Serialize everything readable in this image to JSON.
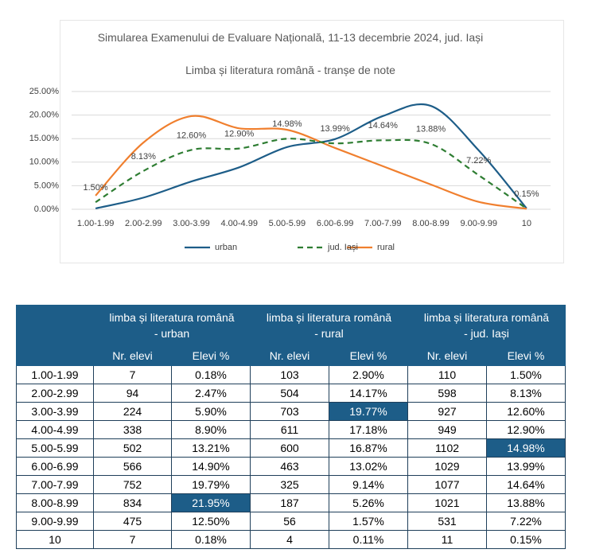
{
  "chart_data": {
    "type": "line",
    "title": "Simularea Examenului de Evaluare Națională, 11-13 decembrie 2024, jud. Iași",
    "subtitle": "Limba și literatura română - tranșe de note",
    "categories": [
      "1.00-1.99",
      "2.00-2.99",
      "3.00-3.99",
      "4.00-4.99",
      "5.00-5.99",
      "6.00-6.99",
      "7.00-7.99",
      "8.00-8.99",
      "9.00-9.99",
      "10"
    ],
    "series": [
      {
        "name": "urban",
        "color": "#1d5d88",
        "values": [
          0.18,
          2.47,
          5.9,
          8.9,
          13.21,
          14.9,
          19.79,
          21.95,
          12.5,
          0.18
        ]
      },
      {
        "name": "rural",
        "color": "#f07f2e",
        "values": [
          2.9,
          14.17,
          19.77,
          17.18,
          16.87,
          13.02,
          9.14,
          5.26,
          1.57,
          0.11
        ]
      },
      {
        "name": "jud. Iași",
        "color": "#2e7d32",
        "dashed": true,
        "values": [
          1.5,
          8.13,
          12.6,
          12.9,
          14.98,
          13.99,
          14.64,
          13.88,
          7.22,
          0.15
        ],
        "value_labels": [
          "1.50%",
          "8.13%",
          "12.60%",
          "12.90%",
          "14.98%",
          "13.99%",
          "14.64%",
          "13.88%",
          "7.22%",
          "0.15%"
        ]
      }
    ],
    "ylim": [
      0,
      25
    ],
    "yticks": [
      {
        "value": 0,
        "label": "0.00%"
      },
      {
        "value": 5,
        "label": "5.00%"
      },
      {
        "value": 10,
        "label": "10.00%"
      },
      {
        "value": 15,
        "label": "15.00%"
      },
      {
        "value": 20,
        "label": "20.00%"
      },
      {
        "value": 25,
        "label": "25.00%"
      }
    ],
    "grid": true,
    "legend": "bottom"
  },
  "table": {
    "groups": [
      "limba și literatura română - urban",
      "limba și literatura română - rural",
      "limba și literatura română - jud. Iași"
    ],
    "columns": [
      "Nr. elevi",
      "Elevi %",
      "Nr. elevi",
      "Elevi %",
      "Nr. elevi",
      "Elevi %"
    ],
    "rows": [
      [
        "1.00-1.99",
        "7",
        "0.18%",
        "103",
        "2.90%",
        "110",
        "1.50%"
      ],
      [
        "2.00-2.99",
        "94",
        "2.47%",
        "504",
        "14.17%",
        "598",
        "8.13%"
      ],
      [
        "3.00-3.99",
        "224",
        "5.90%",
        "703",
        "19.77%",
        "927",
        "12.60%"
      ],
      [
        "4.00-4.99",
        "338",
        "8.90%",
        "611",
        "17.18%",
        "949",
        "12.90%"
      ],
      [
        "5.00-5.99",
        "502",
        "13.21%",
        "600",
        "16.87%",
        "1102",
        "14.98%"
      ],
      [
        "6.00-6.99",
        "566",
        "14.90%",
        "463",
        "13.02%",
        "1029",
        "13.99%"
      ],
      [
        "7.00-7.99",
        "752",
        "19.79%",
        "325",
        "9.14%",
        "1077",
        "14.64%"
      ],
      [
        "8.00-8.99",
        "834",
        "21.95%",
        "187",
        "5.26%",
        "1021",
        "13.88%"
      ],
      [
        "9.00-9.99",
        "475",
        "12.50%",
        "56",
        "1.57%",
        "531",
        "7.22%"
      ],
      [
        "10",
        "7",
        "0.18%",
        "4",
        "0.11%",
        "11",
        "0.15%"
      ]
    ],
    "highlighted": [
      {
        "row": 2,
        "col": 4
      },
      {
        "row": 7,
        "col": 2
      },
      {
        "row": 4,
        "col": 6
      }
    ]
  }
}
